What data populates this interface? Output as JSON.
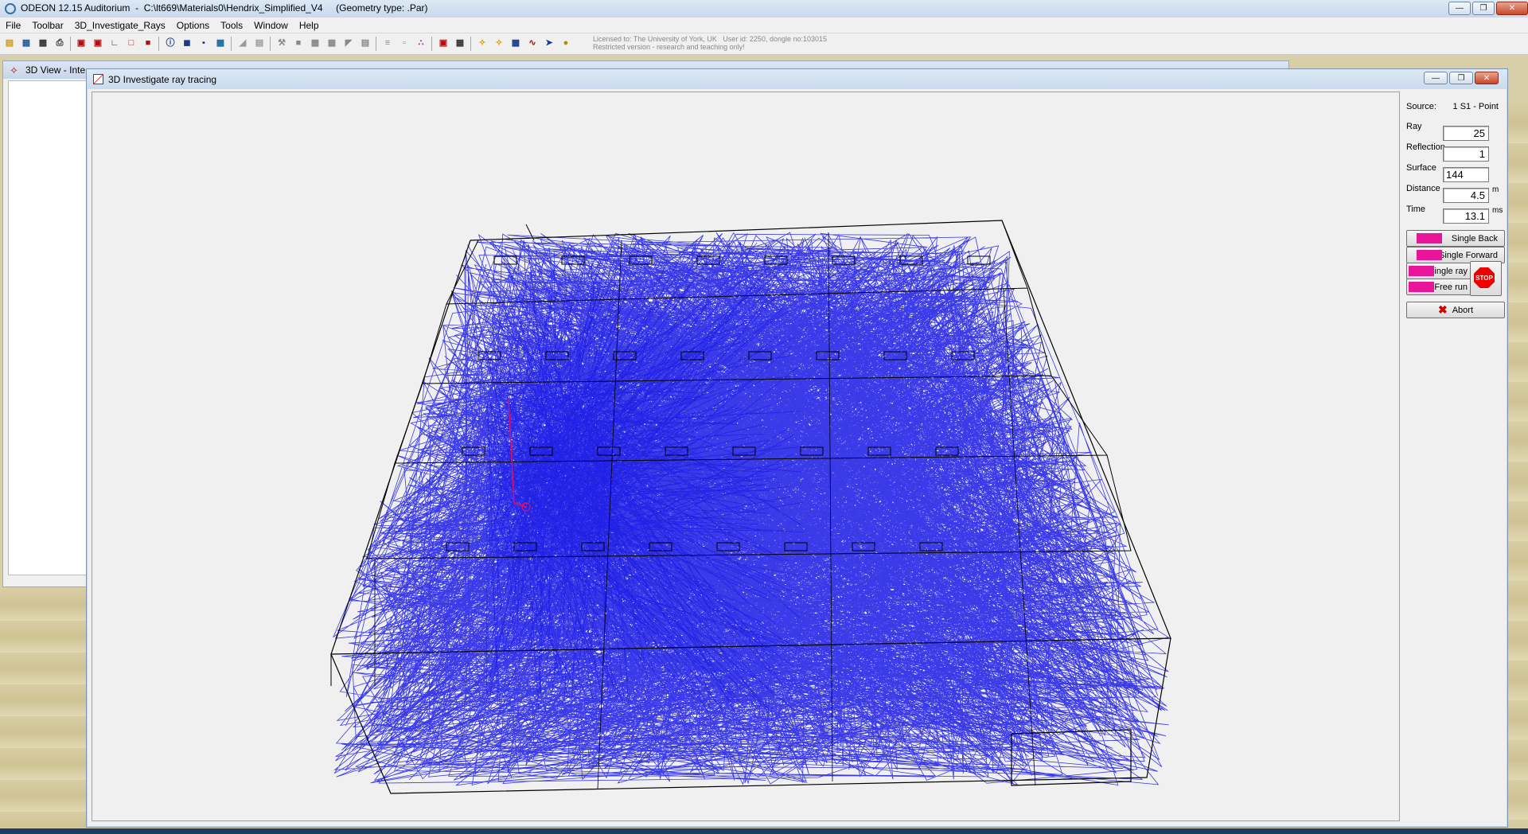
{
  "window": {
    "title": "ODEON 12.15 Auditorium  -  C:\\lt669\\Materials0\\Hendrix_Simplified_V4     (Geometry type: .Par)"
  },
  "menu": [
    "File",
    "Toolbar",
    "3D_Investigate_Rays",
    "Options",
    "Tools",
    "Window",
    "Help"
  ],
  "license": {
    "line1": "Licensed to: The University of York, UK   User id: 2250, dongle no:103015",
    "line2": "Restricted version - research and teaching only!"
  },
  "background_window": {
    "title": "3D View - Inte"
  },
  "main_window": {
    "title": "3D Investigate ray tracing"
  },
  "panel": {
    "source_label": "Source:",
    "source_value": "1 S1  -  Point",
    "ray_label": "Ray",
    "ray_value": "25",
    "reflection_label": "Reflection",
    "reflection_value": "1",
    "surface_label": "Surface",
    "surface_value": "144",
    "distance_label": "Distance",
    "distance_value": "4.5",
    "distance_unit": "m",
    "time_label": "Time",
    "time_value": "13.1",
    "time_unit": "ms",
    "single_back": "Single Back",
    "single_forward": "Single Forward",
    "single_ray": "Single ray",
    "free_run": "Free run",
    "stop": "STOP",
    "abort": "Abort"
  },
  "colors": {
    "ray": "#1a1ae6",
    "wire": "#000000",
    "accent": "#e8149a"
  }
}
